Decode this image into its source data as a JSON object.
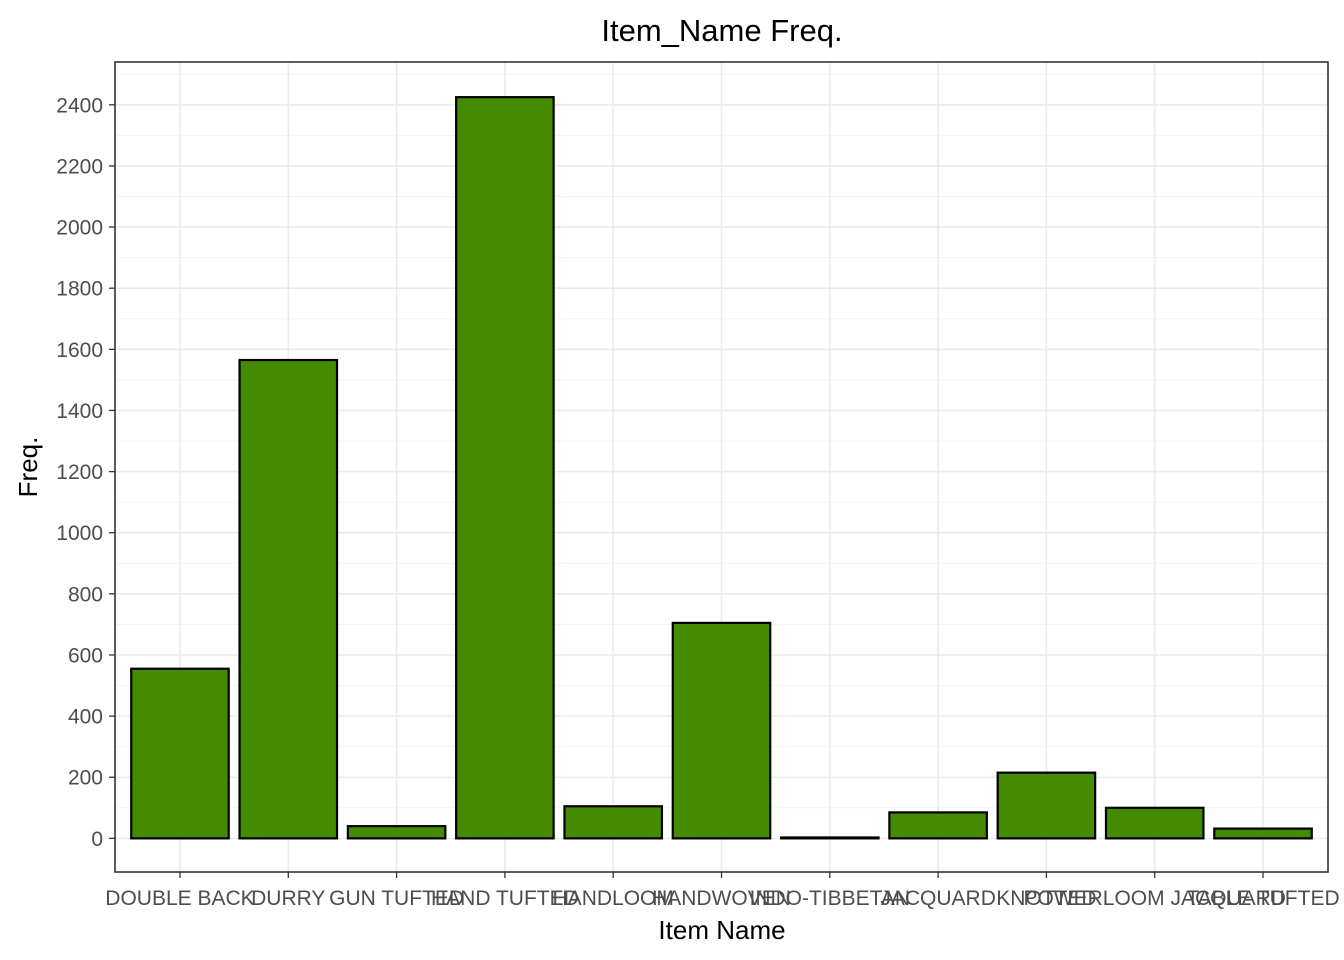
{
  "chart_data": {
    "type": "bar",
    "title": "Item_Name Freq.",
    "xlabel": "Item Name",
    "ylabel": "Freq.",
    "categories": [
      "DOUBLE BACK",
      "DURRY",
      "GUN TUFTED",
      "HAND TUFTED",
      "HANDLOOM",
      "HANDWOVEN",
      "INDO-TIBBETAN",
      "JACQUARD",
      "KNOTTED",
      "POWERLOOM JACQUARD",
      "TABLE TUFTED"
    ],
    "values": [
      555,
      1565,
      40,
      2425,
      105,
      705,
      3,
      85,
      215,
      100,
      32
    ],
    "ylim": [
      -110,
      2540
    ],
    "yticks": [
      0,
      200,
      400,
      600,
      800,
      1000,
      1200,
      1400,
      1600,
      1800,
      2000,
      2200,
      2400
    ],
    "grid": true,
    "bar_color": "#458B00",
    "bar_outline": "#000000",
    "legend": "none"
  }
}
